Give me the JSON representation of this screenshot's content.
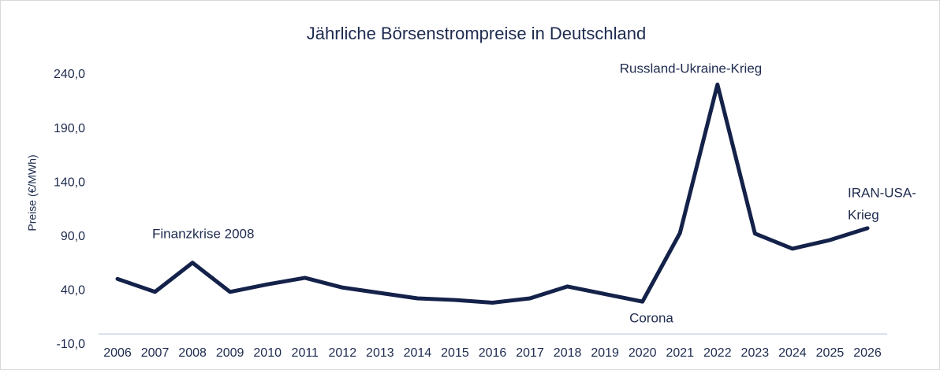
{
  "chart_data": {
    "type": "line",
    "title": "Jährliche Börsenstrompreise in Deutschland",
    "y_label": "Preise (€/MWh)",
    "categories": [
      "2006",
      "2007",
      "2008",
      "2009",
      "2010",
      "2011",
      "2012",
      "2013",
      "2014",
      "2015",
      "2016",
      "2017",
      "2018",
      "2019",
      "2020",
      "2021",
      "2022",
      "2023",
      "2024",
      "2025",
      "2026"
    ],
    "series": [
      {
        "name": "Börsenstrompreis",
        "color": "#14224a",
        "values": [
          51,
          39,
          66,
          39,
          46,
          52,
          43,
          38,
          33,
          31.5,
          29,
          33,
          44,
          37,
          30,
          93.5,
          231,
          93,
          79,
          87,
          98
        ]
      }
    ],
    "ylim": [
      -10,
      240
    ],
    "yticks": [
      {
        "value": -10,
        "label": "-10,0"
      },
      {
        "value": 40,
        "label": "40,0"
      },
      {
        "value": 90,
        "label": "90,0"
      },
      {
        "value": 140,
        "label": "140,0"
      },
      {
        "value": 190,
        "label": "190,0"
      },
      {
        "value": 240,
        "label": "240,0"
      }
    ],
    "grid": false,
    "annotations": [
      {
        "lines": [
          "Finanzkrise 2008"
        ]
      },
      {
        "lines": [
          "Russland-Ukraine-Krieg"
        ]
      },
      {
        "lines": [
          "Corona"
        ]
      },
      {
        "lines": [
          "IRAN-USA-",
          "Krieg"
        ]
      }
    ]
  }
}
